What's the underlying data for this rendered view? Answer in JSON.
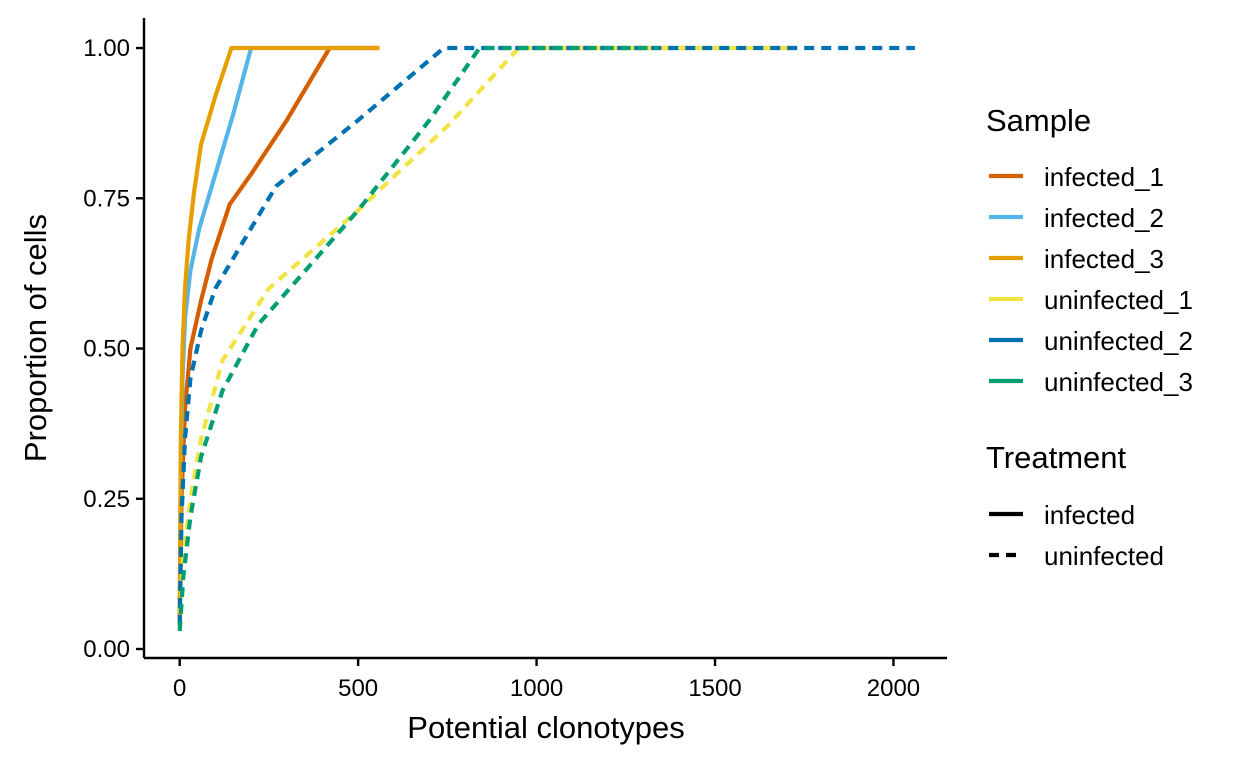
{
  "chart_data": {
    "type": "line",
    "xlabel": "Potential clonotypes",
    "ylabel": "Proportion of cells",
    "xlim": [
      -100,
      2150
    ],
    "ylim": [
      -0.015,
      1.05
    ],
    "xticks": [
      0,
      500,
      1000,
      1500,
      2000
    ],
    "yticks": [
      0.0,
      0.25,
      0.5,
      0.75,
      1.0
    ],
    "ytick_labels": [
      "0.00",
      "0.25",
      "0.50",
      "0.75",
      "1.00"
    ],
    "grid": false,
    "legend_placement": "right",
    "legends": [
      {
        "title": "Sample",
        "entries": [
          {
            "label": "infected_1",
            "color": "#D55E00",
            "dash": "solid"
          },
          {
            "label": "infected_2",
            "color": "#56B4E9",
            "dash": "solid"
          },
          {
            "label": "infected_3",
            "color": "#E69F00",
            "dash": "solid"
          },
          {
            "label": "uninfected_1",
            "color": "#F0E442",
            "dash": "solid"
          },
          {
            "label": "uninfected_2",
            "color": "#0072B2",
            "dash": "solid"
          },
          {
            "label": "uninfected_3",
            "color": "#009E73",
            "dash": "solid"
          }
        ]
      },
      {
        "title": "Treatment",
        "entries": [
          {
            "label": "infected",
            "color": "#000000",
            "dash": "solid"
          },
          {
            "label": "uninfected",
            "color": "#000000",
            "dash": "dashed"
          }
        ]
      }
    ],
    "series": [
      {
        "name": "infected_1",
        "color": "#D55E00",
        "dash": "solid",
        "x": [
          0,
          5,
          15,
          30,
          60,
          90,
          140,
          200,
          300,
          420,
          560
        ],
        "y": [
          0.05,
          0.25,
          0.4,
          0.5,
          0.58,
          0.65,
          0.74,
          0.79,
          0.88,
          1.0,
          1.0
        ]
      },
      {
        "name": "infected_2",
        "color": "#56B4E9",
        "dash": "solid",
        "x": [
          0,
          3,
          8,
          15,
          30,
          55,
          100,
          150,
          200
        ],
        "y": [
          0.05,
          0.3,
          0.45,
          0.55,
          0.63,
          0.7,
          0.79,
          0.89,
          1.0
        ]
      },
      {
        "name": "infected_3",
        "color": "#E69F00",
        "dash": "solid",
        "x": [
          0,
          3,
          8,
          15,
          25,
          40,
          60,
          100,
          145,
          560
        ],
        "y": [
          0.05,
          0.35,
          0.5,
          0.6,
          0.68,
          0.76,
          0.84,
          0.92,
          1.0,
          1.0
        ]
      },
      {
        "name": "uninfected_1",
        "color": "#F0E442",
        "dash": "dashed",
        "x": [
          0,
          10,
          30,
          60,
          120,
          250,
          500,
          750,
          950,
          1720
        ],
        "y": [
          0.03,
          0.15,
          0.25,
          0.35,
          0.48,
          0.6,
          0.73,
          0.87,
          1.0,
          1.0
        ]
      },
      {
        "name": "uninfected_2",
        "color": "#0072B2",
        "dash": "dashed",
        "x": [
          0,
          5,
          15,
          30,
          60,
          100,
          150,
          270,
          500,
          740,
          2060
        ],
        "y": [
          0.04,
          0.22,
          0.35,
          0.45,
          0.53,
          0.6,
          0.65,
          0.77,
          0.88,
          1.0,
          1.0
        ]
      },
      {
        "name": "uninfected_3",
        "color": "#009E73",
        "dash": "dashed",
        "x": [
          0,
          10,
          30,
          60,
          120,
          220,
          500,
          700,
          840,
          1340
        ],
        "y": [
          0.03,
          0.12,
          0.22,
          0.32,
          0.43,
          0.54,
          0.73,
          0.88,
          1.0,
          1.0
        ]
      }
    ]
  }
}
